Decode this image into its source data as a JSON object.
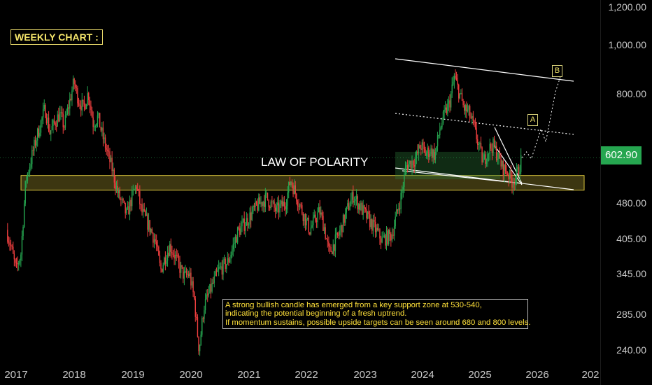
{
  "chart_data": {
    "type": "candlestick",
    "title": "WEEKLY CHART :",
    "annotation": "LAW OF POLARITY",
    "wave_labels": [
      "A",
      "B"
    ],
    "notes": [
      "A strong bullish candle has emerged from a key support zone at 530-540,",
      " indicating the potential beginning of a fresh uptrend.",
      "If momentum sustains, possible upside targets can be seen around 680 and 800 levels."
    ],
    "last_price": "602.90",
    "price_ticks": [
      "1,200.00",
      "1,000.00",
      "800.00",
      "480.00",
      "405.00",
      "345.00",
      "285.00",
      "240.00"
    ],
    "date_ticks": [
      "2017",
      "2018",
      "2019",
      "2020",
      "2021",
      "2022",
      "2023",
      "2024",
      "2025",
      "2026",
      "202"
    ],
    "support_zone": [
      530,
      540
    ],
    "targets": [
      680,
      800
    ],
    "x_range": [
      "2016-11",
      "2026-12"
    ],
    "y_scale": "log",
    "grid": false,
    "price_path": [
      [
        "2016-11",
        430
      ],
      [
        "2016-12",
        395
      ],
      [
        "2017-01",
        355
      ],
      [
        "2017-02",
        385
      ],
      [
        "2017-03",
        540
      ],
      [
        "2017-05",
        650
      ],
      [
        "2017-07",
        760
      ],
      [
        "2017-08",
        680
      ],
      [
        "2017-10",
        740
      ],
      [
        "2017-11",
        700
      ],
      [
        "2018-01",
        860
      ],
      [
        "2018-02",
        790
      ],
      [
        "2018-03",
        760
      ],
      [
        "2018-04",
        820
      ],
      [
        "2018-05",
        710
      ],
      [
        "2018-06",
        730
      ],
      [
        "2018-07",
        665
      ],
      [
        "2018-09",
        570
      ],
      [
        "2018-10",
        515
      ],
      [
        "2018-12",
        460
      ],
      [
        "2019-01",
        500
      ],
      [
        "2019-02",
        530
      ],
      [
        "2019-03",
        470
      ],
      [
        "2019-05",
        430
      ],
      [
        "2019-06",
        405
      ],
      [
        "2019-07",
        355
      ],
      [
        "2019-08",
        380
      ],
      [
        "2019-09",
        400
      ],
      [
        "2019-11",
        360
      ],
      [
        "2019-12",
        345
      ],
      [
        "2020-01",
        350
      ],
      [
        "2020-02",
        310
      ],
      [
        "2020-03",
        245
      ],
      [
        "2020-04",
        300
      ],
      [
        "2020-05",
        318
      ],
      [
        "2020-07",
        355
      ],
      [
        "2020-09",
        370
      ],
      [
        "2020-11",
        425
      ],
      [
        "2021-01",
        450
      ],
      [
        "2021-03",
        480
      ],
      [
        "2021-05",
        500
      ],
      [
        "2021-07",
        470
      ],
      [
        "2021-09",
        490
      ],
      [
        "2021-10",
        545
      ],
      [
        "2021-12",
        480
      ],
      [
        "2022-02",
        430
      ],
      [
        "2022-04",
        470
      ],
      [
        "2022-05",
        435
      ],
      [
        "2022-06",
        385
      ],
      [
        "2022-08",
        420
      ],
      [
        "2022-10",
        480
      ],
      [
        "2022-11",
        505
      ],
      [
        "2023-01",
        470
      ],
      [
        "2023-03",
        440
      ],
      [
        "2023-05",
        410
      ],
      [
        "2023-07",
        420
      ],
      [
        "2023-09",
        505
      ],
      [
        "2023-10",
        580
      ],
      [
        "2023-12",
        600
      ],
      [
        "2024-01",
        640
      ],
      [
        "2024-02",
        615
      ],
      [
        "2024-03",
        625
      ],
      [
        "2024-04",
        610
      ],
      [
        "2024-05",
        690
      ],
      [
        "2024-06",
        740
      ],
      [
        "2024-07",
        780
      ],
      [
        "2024-08",
        880
      ],
      [
        "2024-09",
        820
      ],
      [
        "2024-10",
        760
      ],
      [
        "2024-11",
        745
      ],
      [
        "2024-12",
        700
      ],
      [
        "2025-02",
        590
      ],
      [
        "2025-03",
        625
      ],
      [
        "2025-04",
        640
      ],
      [
        "2025-05",
        610
      ],
      [
        "2025-06",
        575
      ],
      [
        "2025-07",
        565
      ],
      [
        "2025-08",
        540
      ],
      [
        "2025-09",
        555
      ],
      [
        "2025-10",
        602.9
      ]
    ],
    "projection": [
      [
        "2025-10",
        602.9
      ],
      [
        "2025-11",
        620
      ],
      [
        "2025-12",
        600
      ],
      [
        "2026-02",
        690
      ],
      [
        "2026-03",
        650
      ],
      [
        "2026-05",
        820
      ],
      [
        "2026-06",
        880
      ]
    ],
    "colors": {
      "up": "#26a650",
      "down": "#ef3f3f",
      "zone": "#d6c23c",
      "channel": "#ffffff",
      "note_text": "#ffe13a",
      "last_price_bg": "#26a650"
    }
  }
}
